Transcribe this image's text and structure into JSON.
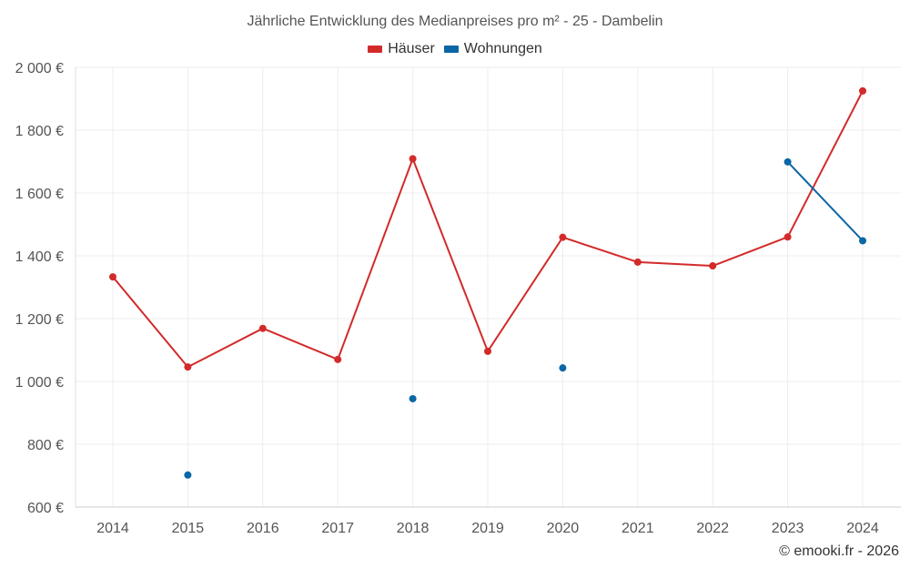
{
  "chart_data": {
    "type": "line",
    "title": "Jährliche Entwicklung des Medianpreises pro m² - 25 - Dambelin",
    "categories": [
      "2014",
      "2015",
      "2016",
      "2017",
      "2018",
      "2019",
      "2020",
      "2021",
      "2022",
      "2023",
      "2024"
    ],
    "series": [
      {
        "name": "Häuser",
        "color": "#d32a2a",
        "values": [
          1333,
          1046,
          1169,
          1070,
          1709,
          1096,
          1459,
          1380,
          1368,
          1460,
          1925
        ]
      },
      {
        "name": "Wohnungen",
        "color": "#0a66a5",
        "values": [
          null,
          702,
          null,
          null,
          945,
          null,
          1043,
          null,
          null,
          1699,
          1448
        ]
      }
    ],
    "yticks": [
      600,
      800,
      1000,
      1200,
      1400,
      1600,
      1800,
      2000
    ],
    "ytick_labels": [
      "600 €",
      "800 €",
      "1 000 €",
      "1 200 €",
      "1 400 €",
      "1 600 €",
      "1 800 €",
      "2 000 €"
    ],
    "ylim": [
      600,
      2000
    ],
    "xlabel": "",
    "ylabel": "",
    "grid": true,
    "legend_position": "top-center"
  },
  "credit": "© emooki.fr - 2026"
}
